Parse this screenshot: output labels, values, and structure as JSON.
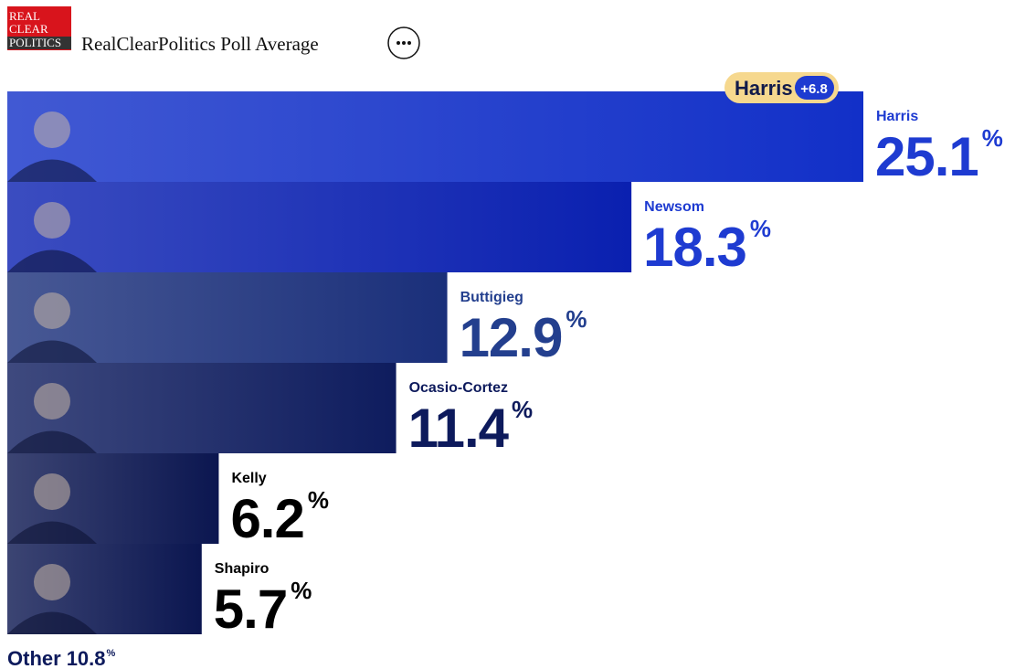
{
  "header": {
    "logo": [
      "REAL",
      "CLEAR",
      "POLITICS"
    ],
    "title": "RealClearPolitics Poll Average"
  },
  "chart_data": {
    "type": "bar",
    "orientation": "horizontal",
    "categories": [
      "Harris",
      "Newsom",
      "Buttigieg",
      "Ocasio-Cortez",
      "Kelly",
      "Shapiro"
    ],
    "values": [
      25.1,
      18.3,
      12.9,
      11.4,
      6.2,
      5.7
    ],
    "unit": "%",
    "xlim": [
      0,
      25.1
    ],
    "colors": [
      "#1230c8",
      "#0a20b0",
      "#1a2f7a",
      "#0e1c5e",
      "#0b1650",
      "#0b1650"
    ],
    "label_colors": [
      "#1e3bd1",
      "#1e3bd1",
      "#233f8e",
      "#0d1a5c",
      "#000000",
      "#000000"
    ],
    "leader": {
      "name": "Harris",
      "lead": "+6.8"
    },
    "other": {
      "label": "Other",
      "value": 10.8
    }
  }
}
